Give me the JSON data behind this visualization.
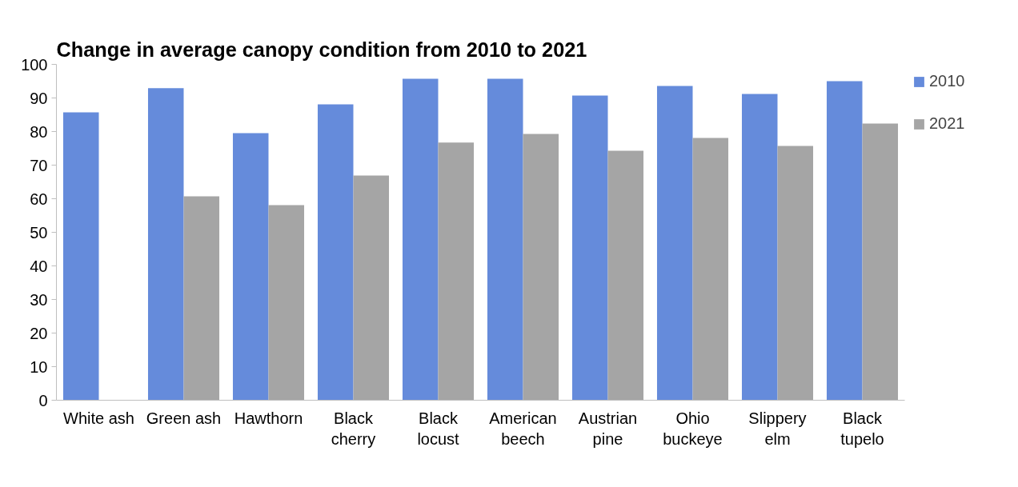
{
  "chart_data": {
    "type": "bar",
    "title": "Change in average canopy condition from 2010 to 2021",
    "categories": [
      "White ash",
      "Green ash",
      "Hawthorn",
      "Black cherry",
      "Black locust",
      "American beech",
      "Austrian pine",
      "Ohio buckeye",
      "Slippery elm",
      "Black tupelo"
    ],
    "series": [
      {
        "name": "2010",
        "color": "#658bdb",
        "values": [
          85.7,
          92.9,
          79.5,
          88.1,
          95.7,
          95.7,
          90.7,
          93.6,
          91.2,
          95.0
        ]
      },
      {
        "name": "2021",
        "color": "#a5a5a5",
        "values": [
          null,
          60.7,
          58.1,
          66.9,
          76.7,
          79.3,
          74.3,
          78.1,
          75.7,
          82.4
        ]
      }
    ],
    "ylim": [
      0,
      100
    ],
    "yticks": [
      0,
      10,
      20,
      30,
      40,
      50,
      60,
      70,
      80,
      90,
      100
    ],
    "grid": false,
    "legend": "top right"
  }
}
